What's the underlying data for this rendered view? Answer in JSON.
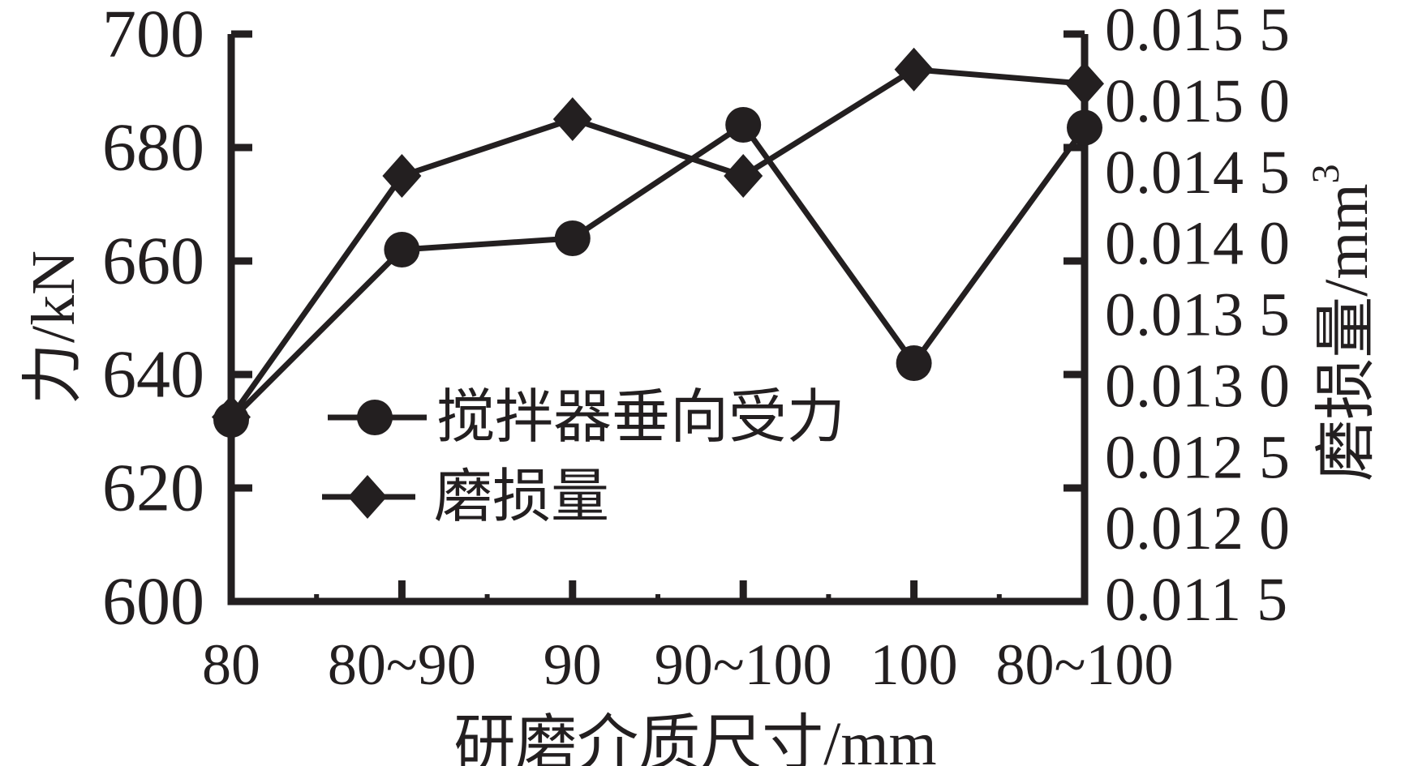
{
  "figure": {
    "description": "Dual-axis line chart: grinding media size vs agitator vertical force and wear amount"
  },
  "chart_data": {
    "type": "line",
    "categories": [
      "80",
      "80~90",
      "90",
      "90~100",
      "100",
      "80~100"
    ],
    "xlabel": "研磨介质尺寸/mm",
    "axes": {
      "left": {
        "title": "力/kN",
        "min": 600,
        "max": 700,
        "ticks": [
          700,
          680,
          660,
          640,
          620,
          600
        ]
      },
      "right": {
        "title_main": "磨损量/mm",
        "title_sup": "3",
        "min": 0.0115,
        "max": 0.0155,
        "tick_labels": [
          "0.015 5",
          "0.015 0",
          "0.014 5",
          "0.014 0",
          "0.013 5",
          "0.013 0",
          "0.012 5",
          "0.012 0",
          "0.011 5"
        ]
      }
    },
    "series": [
      {
        "name": "搅拌器垂向受力",
        "axis": "left",
        "marker": "circle",
        "values": [
          632,
          662,
          664,
          684,
          642,
          683.5
        ]
      },
      {
        "name": "磨损量",
        "axis": "right",
        "marker": "diamond",
        "values": [
          0.0128,
          0.0145,
          0.0149,
          0.0145,
          0.01525,
          0.01515
        ]
      }
    ],
    "legend_position": "inside-left-middle",
    "grid": false,
    "colors": {
      "ink": "#231f20",
      "background": "#ffffff"
    }
  }
}
